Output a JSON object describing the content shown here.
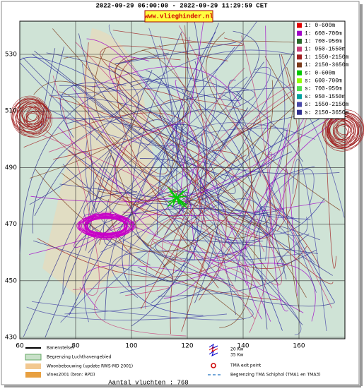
{
  "header": {
    "title": "2022-09-29 06:00:00 - 2022-09-29 11:29:59 CET",
    "badge": "www.vlieghinder.nl"
  },
  "map": {
    "yticks": [
      530,
      510,
      490,
      470,
      450,
      430
    ],
    "xticks": [
      60,
      80,
      100,
      120,
      140,
      160
    ]
  },
  "legend": [
    {
      "label": "1: 0-600m",
      "color": "#e00000"
    },
    {
      "label": "1: 600-700m",
      "color": "#a000c8"
    },
    {
      "label": "1: 700-950m",
      "color": "#2a6a2a"
    },
    {
      "label": "1: 950-1550m",
      "color": "#c83c78"
    },
    {
      "label": "1: 1550-2150m",
      "color": "#a02020"
    },
    {
      "label": "1: 2150-3650m",
      "color": "#7a3a1a"
    },
    {
      "label": "s: 0-600m",
      "color": "#00c800"
    },
    {
      "label": "s: 600-700m",
      "color": "#90ff00"
    },
    {
      "label": "s: 700-950m",
      "color": "#50e050"
    },
    {
      "label": "s: 950-1550m",
      "color": "#00a0a0"
    },
    {
      "label": "s: 1550-2150m",
      "color": "#4848a8"
    },
    {
      "label": "s: 2150-3650m",
      "color": "#303090"
    }
  ],
  "key": {
    "left": [
      "Banenstelsel",
      "Begrenzing Luchthavengebied",
      "Woonbebouwing (update RWS-MD 2001)",
      "Vinex2001 (bron: RPD)"
    ],
    "right": [
      "20 Kw",
      "35 Kw",
      "TMA exit point",
      "Begrenzing TMA Schiphol  (TMA1 en TMA3)"
    ]
  },
  "footer": "Aantal vluchten : 768"
}
